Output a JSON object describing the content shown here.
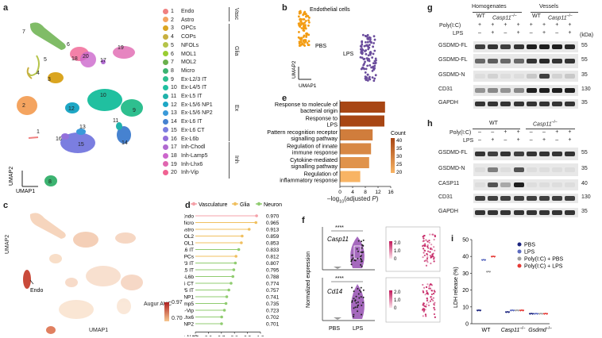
{
  "panel_a": {
    "label": "a",
    "axis_x": "UMAP1",
    "axis_y": "UMAP2",
    "cluster_numbers": [
      "7",
      "6",
      "5",
      "4",
      "3",
      "20",
      "19",
      "17",
      "18",
      "2",
      "12",
      "10",
      "9",
      "11",
      "1",
      "13",
      "14",
      "16",
      "15",
      "8"
    ],
    "legend": [
      {
        "n": "1",
        "name": "Endo",
        "color": "#f08080"
      },
      {
        "n": "2",
        "name": "Astro",
        "color": "#f4a460"
      },
      {
        "n": "3",
        "name": "OPCs",
        "color": "#daa520"
      },
      {
        "n": "4",
        "name": "COPs",
        "color": "#c8b040"
      },
      {
        "n": "5",
        "name": "NFOLs",
        "color": "#b5c44a"
      },
      {
        "n": "6",
        "name": "MOL1",
        "color": "#9acd32"
      },
      {
        "n": "7",
        "name": "MOL2",
        "color": "#6ab04c"
      },
      {
        "n": "8",
        "name": "Micro",
        "color": "#3cb371"
      },
      {
        "n": "9",
        "name": "Ex-L2/3 IT",
        "color": "#2ebf8f"
      },
      {
        "n": "10",
        "name": "Ex-L4/5 IT",
        "color": "#20c0a0"
      },
      {
        "n": "11",
        "name": "Ex-L5 IT",
        "color": "#20b2aa"
      },
      {
        "n": "12",
        "name": "Ex-L5/6 NP1",
        "color": "#1ea7c5"
      },
      {
        "n": "13",
        "name": "Ex-L5/6 NP2",
        "color": "#3a9ad9"
      },
      {
        "n": "14",
        "name": "Ex-L6 IT",
        "color": "#4682d0"
      },
      {
        "n": "15",
        "name": "Ex-L6 CT",
        "color": "#7b7ee0"
      },
      {
        "n": "16",
        "name": "Ex-L6b",
        "color": "#9370db"
      },
      {
        "n": "17",
        "name": "Inh-Chodl",
        "color": "#b06ad0"
      },
      {
        "n": "18",
        "name": "Inh-Lamp5",
        "color": "#cc66cc"
      },
      {
        "n": "19",
        "name": "Inh-Lhx6",
        "color": "#e066b0"
      },
      {
        "n": "20",
        "name": "Inh-Vip",
        "color": "#f06292"
      }
    ],
    "groups": [
      "Vasc",
      "Glia",
      "Ex",
      "Inh"
    ]
  },
  "panel_b": {
    "label": "b",
    "title": "Endothelial cells",
    "group1": "PBS",
    "group2": "LPS",
    "axis_x": "UMAP1",
    "axis_y": "UMAP2"
  },
  "panel_c": {
    "label": "c",
    "axis_x": "UMAP1",
    "axis_y": "UMAP2",
    "annotation": "Endo",
    "legend_title": "Augur AUC",
    "legend_max": "0.97",
    "legend_min": "0.70"
  },
  "chart_data": [
    {
      "panel": "d",
      "type": "lollipop",
      "legend": [
        {
          "name": "Vasculature",
          "color": "#f4a0a8"
        },
        {
          "name": "Glia",
          "color": "#f0c060"
        },
        {
          "name": "Neuron",
          "color": "#90cc70"
        }
      ],
      "categories": [
        "Endo",
        "Micro",
        "Astro",
        "MOL2",
        "MOL1",
        "Ex-L6 IT",
        "OPCs",
        "Ex-L2/3 IT",
        "Ex-L5 IT",
        "Ex-L6b",
        "Ex-L6 CT",
        "Ex-L4/5 IT",
        "Ex-L5/6 NP1",
        "Inh-Lamp5",
        "Inh-Vip",
        "Inh-Lhx6",
        "Ex-L5/6 NP2"
      ],
      "values": [
        0.97,
        0.965,
        0.913,
        0.859,
        0.853,
        0.833,
        0.812,
        0.807,
        0.795,
        0.788,
        0.774,
        0.757,
        0.741,
        0.735,
        0.723,
        0.702,
        0.701
      ],
      "value_labels": [
        "0.970",
        "0.965",
        "0.913",
        "0.859",
        "0.853",
        "0.833",
        "0.812",
        "0.807",
        "0.795",
        "0.788",
        "0.774",
        "0.757",
        "0.741",
        "0.735",
        "0.723",
        "0.702",
        "0.701"
      ],
      "classes": [
        "Vasculature",
        "Glia",
        "Glia",
        "Glia",
        "Glia",
        "Neuron",
        "Glia",
        "Neuron",
        "Neuron",
        "Neuron",
        "Neuron",
        "Neuron",
        "Neuron",
        "Neuron",
        "Neuron",
        "Neuron",
        "Neuron"
      ],
      "xlabel": "Augur AUC",
      "xticks": [
        "0.5",
        "0.6",
        "0.7",
        "0.8",
        "0.9",
        "1.0"
      ],
      "xlim": [
        0.5,
        1.0
      ]
    },
    {
      "panel": "e",
      "type": "bar",
      "orientation": "horizontal",
      "categories": [
        "Response to molecule of bacterial origin",
        "Response to LPS",
        "Pattern recognition receptor signalling pathway",
        "Regulation of innate immune response",
        "Cytokine-mediated signalling pathway",
        "Regulation of inflammatory response"
      ],
      "category_lines": [
        [
          "Response to molecule of",
          "bacterial origin"
        ],
        [
          "Response to",
          "LPS"
        ],
        [
          "Pattern recognition receptor",
          "signalling pathway"
        ],
        [
          "Regulation of innate",
          "immune response"
        ],
        [
          "Cytokine-mediated",
          "signalling pathway"
        ],
        [
          "Regulation of",
          "inflammatory response"
        ]
      ],
      "values": [
        14.2,
        14.0,
        10.3,
        9.8,
        9.2,
        6.4
      ],
      "counts": [
        40,
        40,
        30,
        28,
        26,
        20
      ],
      "xlabel": "-log10(adjusted P)",
      "xticks": [
        "0",
        "4",
        "8",
        "12",
        "16"
      ],
      "xlim": [
        0,
        16
      ],
      "color_legend_title": "Count",
      "color_legend_ticks": [
        "40",
        "35",
        "30",
        "25",
        "20"
      ]
    },
    {
      "panel": "i",
      "type": "dot",
      "groups": [
        "WT",
        "Casp11-/-",
        "Gsdmd-/-"
      ],
      "series": [
        {
          "name": "PBS",
          "color": "#1a237e",
          "values": [
            8,
            7,
            6
          ]
        },
        {
          "name": "LPS",
          "color": "#5c6bc0",
          "values": [
            38,
            8,
            6
          ]
        },
        {
          "name": "Poly(I:C) + PBS",
          "color": "#9e9e9e",
          "values": [
            31,
            8,
            6
          ]
        },
        {
          "name": "Poly(I:C) + LPS",
          "color": "#e53935",
          "values": [
            40,
            8,
            6
          ]
        }
      ],
      "ylabel": "LDH release (%)",
      "yticks": [
        "0",
        "10",
        "20",
        "30",
        "40",
        "50"
      ],
      "ylim": [
        0,
        50
      ]
    }
  ],
  "panel_d": {
    "label": "d"
  },
  "panel_e": {
    "label": "e",
    "xlabel_main": "–log",
    "xlabel_sub": "10",
    "xlabel_tail": "(adjusted ",
    "xlabel_p": "P",
    "xlabel_end": ")"
  },
  "panel_f": {
    "label": "f",
    "ylabel": "Normalized expression",
    "gene1": "Casp11",
    "gene2": "Cd14",
    "sig": "****",
    "xticks": [
      "PBS",
      "LPS"
    ],
    "scale_max": "2.0",
    "scale_mid": "1.0",
    "scale_min": "0"
  },
  "panel_g": {
    "label": "g",
    "group1": "Homogenates",
    "group2": "Vessels",
    "geno_wt": "WT",
    "geno_ko": "Casp11",
    "geno_ko_sup": "–/–",
    "row_polyic": "Poly(I:C)",
    "row_lps": "LPS",
    "polyic_marks": [
      "+",
      "+",
      "+",
      "+",
      "+",
      "+",
      "+",
      "+"
    ],
    "lps_marks": [
      "–",
      "+",
      "–",
      "+",
      "–",
      "+",
      "–",
      "+"
    ],
    "kda": "(kDa)",
    "blots": [
      {
        "name": "GSDMD-FL",
        "kda": "55"
      },
      {
        "name": "GSDMD-FL",
        "kda": "55"
      },
      {
        "name": "GSDMD-N",
        "kda": "35"
      },
      {
        "name": "CD31",
        "kda": "130"
      },
      {
        "name": "GAPDH",
        "kda": "35"
      }
    ]
  },
  "panel_h": {
    "label": "h",
    "geno_wt": "WT",
    "geno_ko": "Casp11",
    "geno_ko_sup": "–/–",
    "row_polyic": "Poly(I:C)",
    "row_lps": "LPS",
    "polyic_marks": [
      "–",
      "–",
      "+",
      "+",
      "–",
      "–",
      "+",
      "+"
    ],
    "lps_marks": [
      "–",
      "+",
      "–",
      "+",
      "–",
      "+",
      "–",
      "+"
    ],
    "blots": [
      {
        "name": "GSDMD-FL",
        "kda": "55"
      },
      {
        "name": "GSDMD-N",
        "kda": "35"
      },
      {
        "name": "CASP11",
        "kda": "40"
      },
      {
        "name": "CD31",
        "kda": "130"
      },
      {
        "name": "GAPDH",
        "kda": "35"
      }
    ]
  },
  "panel_i": {
    "label": "i",
    "xlabels": [
      "WT",
      "Casp11",
      "Gsdmd"
    ],
    "sup": "–/–"
  }
}
